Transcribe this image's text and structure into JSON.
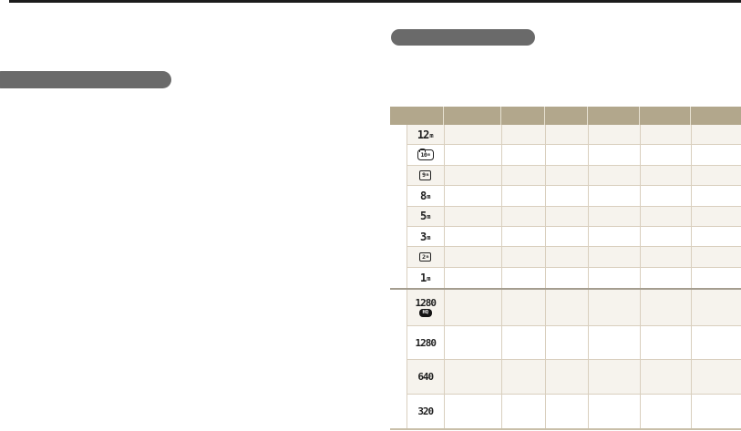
{
  "document": {
    "kind": "camera-manual-page",
    "redacted_headings": {
      "left": "",
      "right": ""
    }
  },
  "colors": {
    "page_bg": "#ffffff",
    "top_rule": "#1b1b1b",
    "redaction_bar": "#6a6a6a",
    "table_header_bg": "#b2a78c",
    "grid_line": "#d9cfbe",
    "row_stripe": "#f6f3ed",
    "section_divider": "#a49d8f",
    "bottom_rule": "#c9bfa9",
    "icon_ink": "#1f1f1f",
    "hq_badge_bg": "#141414",
    "hq_badge_text": "#ffffff"
  },
  "table": {
    "header_columns": [
      "",
      "",
      "",
      "",
      "",
      "",
      ""
    ],
    "rows": [
      {
        "icon": "photo-size-12m",
        "style": "plain",
        "num": "12",
        "sub": "m",
        "section": "photo"
      },
      {
        "icon": "photo-size-10m-wide",
        "style": "rbox",
        "num": "10",
        "sub": "m",
        "section": "photo"
      },
      {
        "icon": "photo-size-9m-wide",
        "style": "box",
        "num": "9",
        "sub": "m",
        "section": "photo"
      },
      {
        "icon": "photo-size-8m",
        "style": "plain",
        "num": "8",
        "sub": "m",
        "section": "photo"
      },
      {
        "icon": "photo-size-5m",
        "style": "plain",
        "num": "5",
        "sub": "m",
        "section": "photo"
      },
      {
        "icon": "photo-size-3m",
        "style": "plain",
        "num": "3",
        "sub": "m",
        "section": "photo"
      },
      {
        "icon": "photo-size-2m-wide",
        "style": "box",
        "num": "2",
        "sub": "m",
        "section": "photo"
      },
      {
        "icon": "photo-size-1m",
        "style": "plain",
        "num": "1",
        "sub": "m",
        "section": "photo"
      },
      {
        "icon": "video-size-1280-hq",
        "style": "hq",
        "num": "1280",
        "badge": "HQ",
        "section": "video"
      },
      {
        "icon": "video-size-1280",
        "style": "plain-vid",
        "num": "1280",
        "section": "video"
      },
      {
        "icon": "video-size-640",
        "style": "plain-vid",
        "num": "640",
        "section": "video"
      },
      {
        "icon": "video-size-320",
        "style": "plain-vid",
        "num": "320",
        "section": "video"
      }
    ]
  }
}
